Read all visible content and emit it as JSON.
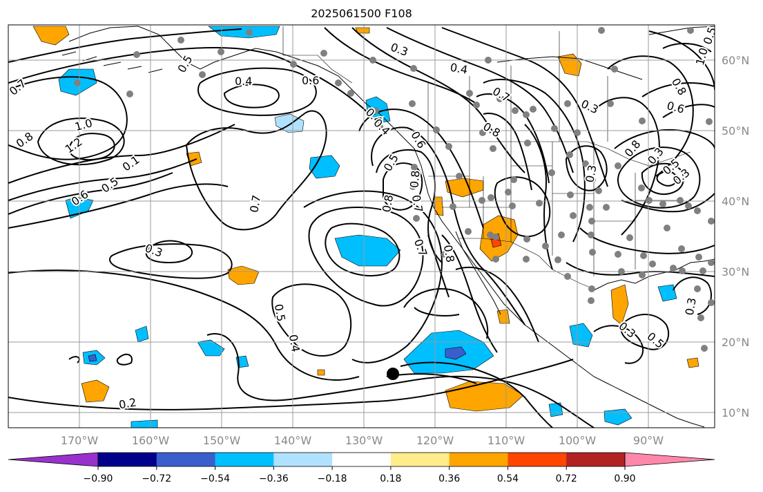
{
  "title": "2025061500 F108",
  "lat_labels": [
    "60°N",
    "50°N",
    "40°N",
    "30°N",
    "20°N",
    "10°N"
  ],
  "lon_labels": [
    "170°W",
    "160°W",
    "150°W",
    "140°W",
    "130°W",
    "120°W",
    "110°W",
    "100°W",
    "90°W"
  ],
  "colorbar": {
    "colors": [
      "#9932cc",
      "#00008b",
      "#3a5fcd",
      "#00bfff",
      "#b0e2ff",
      "#ffffff",
      "#ffec8b",
      "#ffa500",
      "#ff4500",
      "#b22222",
      "#ff88aa"
    ],
    "tick_labels": [
      "−0.90",
      "−0.72",
      "−0.54",
      "−0.36",
      "−0.18",
      "0.18",
      "0.36",
      "0.54",
      "0.72",
      "0.90"
    ]
  },
  "contour_labels": [
    "0.5",
    "0.7",
    "0.4",
    "0.6",
    "0.3",
    "0.4",
    "0.7",
    "1.0",
    "0.8",
    "1.2",
    "0.1",
    "0.6",
    "0.5",
    "0.8",
    "0.7",
    "0.4",
    "0.5",
    "0.8",
    "0.3",
    "0.7",
    "0.3",
    "0.5",
    "0.4",
    "0.8",
    "0.7",
    "0.3",
    "0.5",
    "0.3",
    "0.2",
    "0.6",
    "0.8",
    "0.3",
    "0.8",
    "0.3",
    "0.5",
    "0.3",
    "1.0",
    "0.4",
    "0.6",
    "0.5",
    "0.8"
  ],
  "colors": {
    "contour": "#000000",
    "grid": "#9a9a9a",
    "coast": "#000000",
    "station": "#808080",
    "marker": "#000000"
  }
}
